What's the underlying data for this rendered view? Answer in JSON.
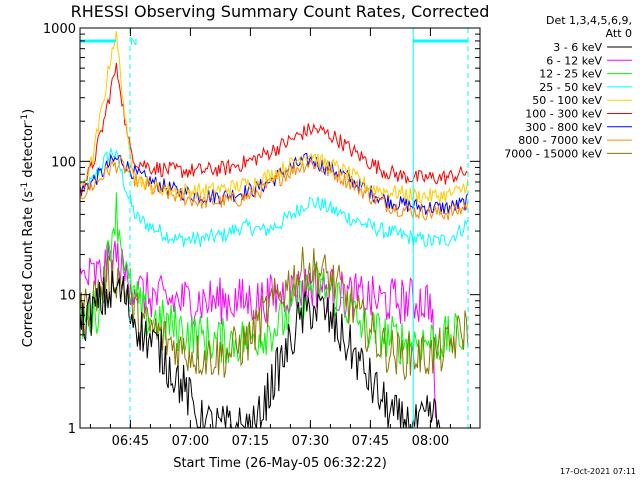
{
  "chart_data": {
    "type": "line",
    "title": "RHESSI Observing Summary Count Rates, Corrected",
    "xlabel": "Start Time (26-May-05 06:32:22)",
    "ylabel": "Corrected Count Rate (s",
    "ylabel_sup1": "-1",
    "ylabel_mid": " detector",
    "ylabel_sup2": "-1",
    "ylabel_end": ")",
    "y_scale": "log",
    "ylim": [
      1,
      1000
    ],
    "xlim_minutes": [
      0,
      100
    ],
    "x_ticks": [
      {
        "m": 12.6,
        "label": "06:45"
      },
      {
        "m": 27.6,
        "label": "07:00"
      },
      {
        "m": 42.6,
        "label": "07:15"
      },
      {
        "m": 57.6,
        "label": "07:30"
      },
      {
        "m": 72.6,
        "label": "07:45"
      },
      {
        "m": 87.6,
        "label": "08:00"
      }
    ],
    "y_ticks": [
      {
        "v": 1,
        "label": "1"
      },
      {
        "v": 10,
        "label": "10"
      },
      {
        "v": 100,
        "label": "100"
      },
      {
        "v": 1000,
        "label": "1000"
      }
    ],
    "legend_title_1": "Det 1,3,4,5,6,9,",
    "legend_title_2": "Att 0",
    "legend_placement": "right",
    "flags": {
      "n_label": "N",
      "vertical_lines_minutes": [
        0,
        12.5,
        83.3,
        97.0
      ],
      "bar_spans_minutes": [
        [
          0,
          9.0
        ],
        [
          83.3,
          97.0
        ]
      ]
    },
    "series": [
      {
        "name": "3 - 6 keV",
        "color": "#000000",
        "x": [
          0,
          4,
          7,
          9,
          11,
          13,
          16,
          20,
          22,
          26,
          30,
          36,
          40,
          44,
          48,
          52,
          55,
          58,
          61,
          64,
          68,
          72,
          76,
          80,
          84,
          86,
          88,
          90
        ],
        "y": [
          6,
          8,
          10,
          11,
          10,
          7,
          5,
          3.8,
          3,
          2,
          1.1,
          1,
          1,
          1,
          2.2,
          4,
          6.5,
          8,
          7.5,
          5.5,
          3.8,
          2.4,
          1.5,
          1.1,
          1,
          1.1,
          1.3,
          1
        ]
      },
      {
        "name": "6 - 12 keV",
        "color": "#ff00ff",
        "x": [
          0,
          5,
          8,
          9,
          10,
          13,
          16,
          22,
          28,
          34,
          40,
          45,
          50,
          55,
          58,
          62,
          66,
          70,
          75,
          80,
          85,
          88,
          89
        ],
        "y": [
          13,
          14,
          18,
          20,
          16,
          12,
          10,
          9,
          9,
          9,
          9,
          9,
          10,
          11,
          12,
          11,
          10,
          9.5,
          9,
          9,
          9,
          9,
          1
        ]
      },
      {
        "name": "12 - 25 keV",
        "color": "#00ff00",
        "x": [
          0,
          5,
          8,
          9,
          10,
          12,
          16,
          22,
          28,
          34,
          40,
          45,
          50,
          55,
          58,
          62,
          66,
          70,
          75,
          80,
          85,
          90,
          96
        ],
        "y": [
          6,
          8,
          30,
          45,
          28,
          12,
          7,
          6,
          5,
          4.5,
          4.5,
          5,
          6,
          9,
          12,
          11,
          9,
          6,
          5,
          4.5,
          4.5,
          4.5,
          5
        ]
      },
      {
        "name": "25 - 50 keV",
        "color": "#00ffff",
        "x": [
          0,
          3,
          6,
          8,
          9,
          10,
          12,
          14,
          18,
          24,
          30,
          36,
          40,
          43,
          46,
          50,
          54,
          57,
          60,
          64,
          68,
          72,
          76,
          80,
          84,
          88,
          92,
          95,
          97
        ],
        "y": [
          60,
          70,
          100,
          120,
          110,
          90,
          55,
          38,
          32,
          26,
          26,
          28,
          32,
          32,
          30,
          34,
          42,
          50,
          48,
          42,
          37,
          33,
          30,
          28,
          26,
          25,
          26,
          30,
          35
        ]
      },
      {
        "name": "50 - 100 keV",
        "color": "#ffcc00",
        "x": [
          0,
          3,
          6,
          8,
          9,
          10,
          12,
          14,
          18,
          24,
          30,
          36,
          40,
          44,
          48,
          52,
          56,
          58,
          60,
          64,
          68,
          72,
          76,
          80,
          84,
          88,
          92,
          95,
          97
        ],
        "y": [
          60,
          100,
          300,
          700,
          900,
          500,
          130,
          75,
          65,
          60,
          60,
          62,
          66,
          70,
          80,
          92,
          110,
          115,
          100,
          90,
          78,
          65,
          60,
          58,
          55,
          55,
          56,
          60,
          70
        ]
      },
      {
        "name": "100 - 300 keV",
        "color": "#ff0000",
        "x": [
          0,
          3,
          6,
          8,
          9,
          10,
          12,
          14,
          18,
          24,
          30,
          36,
          40,
          44,
          48,
          52,
          56,
          58,
          60,
          64,
          68,
          72,
          76,
          80,
          84,
          88,
          92,
          95,
          97
        ],
        "y": [
          60,
          90,
          200,
          380,
          500,
          380,
          140,
          100,
          90,
          85,
          85,
          88,
          95,
          105,
          120,
          140,
          165,
          175,
          170,
          150,
          120,
          100,
          85,
          78,
          75,
          75,
          76,
          80,
          85
        ]
      },
      {
        "name": "300 - 800 keV",
        "color": "#0000ff",
        "x": [
          0,
          3,
          6,
          8,
          10,
          12,
          14,
          18,
          24,
          30,
          36,
          40,
          44,
          48,
          52,
          56,
          58,
          60,
          64,
          68,
          72,
          76,
          80,
          84,
          88,
          92,
          95,
          97
        ],
        "y": [
          60,
          70,
          85,
          100,
          105,
          90,
          80,
          70,
          60,
          55,
          55,
          58,
          62,
          72,
          88,
          100,
          102,
          95,
          85,
          72,
          60,
          52,
          48,
          46,
          45,
          45,
          47,
          50
        ]
      },
      {
        "name": "800 - 7000 keV",
        "color": "#ff8800",
        "x": [
          0,
          3,
          6,
          8,
          10,
          12,
          14,
          18,
          24,
          30,
          36,
          40,
          44,
          48,
          52,
          56,
          58,
          60,
          64,
          68,
          72,
          76,
          80,
          84,
          88,
          92,
          95,
          97
        ],
        "y": [
          55,
          65,
          80,
          92,
          95,
          85,
          72,
          62,
          55,
          50,
          50,
          52,
          58,
          68,
          82,
          95,
          98,
          90,
          80,
          68,
          56,
          48,
          44,
          42,
          41,
          41,
          43,
          48
        ]
      },
      {
        "name": "7000 - 15000 keV",
        "color": "#887700",
        "x": [
          0,
          4,
          7,
          9,
          11,
          13,
          16,
          20,
          24,
          30,
          36,
          42,
          46,
          50,
          54,
          57,
          60,
          64,
          68,
          72,
          76,
          80,
          84,
          88,
          92,
          95,
          97
        ],
        "y": [
          7,
          10,
          13,
          14,
          12,
          8,
          6,
          5,
          4,
          3.5,
          3.5,
          4.5,
          7,
          10,
          14,
          16,
          15,
          12,
          8,
          5.5,
          4,
          3.5,
          3.5,
          3.5,
          4,
          5,
          6
        ]
      }
    ]
  },
  "footer": {
    "timestamp": "17-Oct-2021 07:11"
  }
}
